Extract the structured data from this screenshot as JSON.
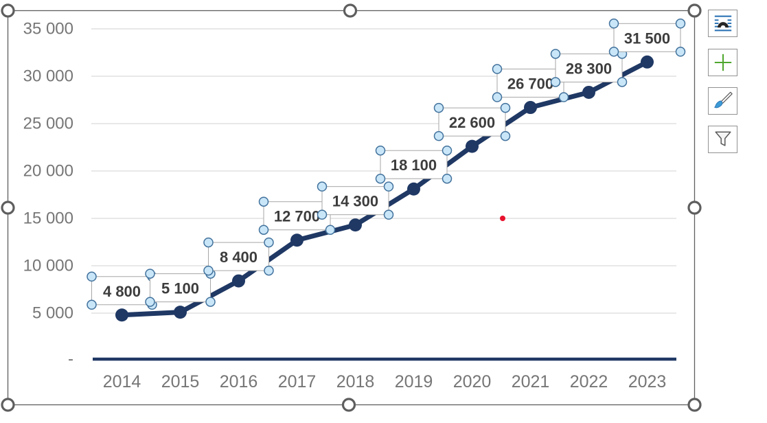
{
  "chart_data": {
    "type": "line",
    "title": "",
    "xlabel": "",
    "ylabel": "",
    "categories": [
      "2014",
      "2015",
      "2016",
      "2017",
      "2018",
      "2019",
      "2020",
      "2021",
      "2022",
      "2023"
    ],
    "values": [
      4800,
      5100,
      8400,
      12700,
      14300,
      18100,
      22600,
      26700,
      28300,
      31500
    ],
    "data_labels": [
      "4 800",
      "5 100",
      "8 400",
      "12 700",
      "14 300",
      "18 100",
      "22 600",
      "26 700",
      "28 300",
      "31 500"
    ],
    "ytick_labels": [
      "35 000",
      "30 000",
      "25 000",
      "20 000",
      "15 000",
      "10 000",
      "5 000",
      "-"
    ],
    "ylim": [
      0,
      35000
    ],
    "ytick_interval": 5000,
    "grid": true,
    "legend": "none",
    "series_color": "#1F3864",
    "marker": "circle"
  },
  "selection": {
    "chart_selected": true,
    "data_labels_selected": true,
    "handle_fill": "#FFFFFF",
    "handle_stroke": "#5E5E5E",
    "label_handle_fill": "#C9E6F8",
    "label_handle_stroke": "#41719C"
  },
  "annotations": {
    "red_dot_color": "#E8112D"
  },
  "side_buttons": [
    {
      "icon": "layout-options-icon"
    },
    {
      "icon": "add-chart-element-icon"
    },
    {
      "icon": "chart-styles-icon"
    },
    {
      "icon": "chart-filters-icon"
    }
  ],
  "colors": {
    "gridline": "#D9D9D9",
    "axis_label": "#767676",
    "data_label_text": "#3D3D3D",
    "label_box_border": "#A6A6A6",
    "frame_border": "#5E5E5E",
    "icon_blue": "#2E75B6",
    "icon_green": "#4EA72E",
    "icon_gray": "#595959",
    "icon_black": "#262626",
    "brush_tip": "#3C9BD5"
  }
}
